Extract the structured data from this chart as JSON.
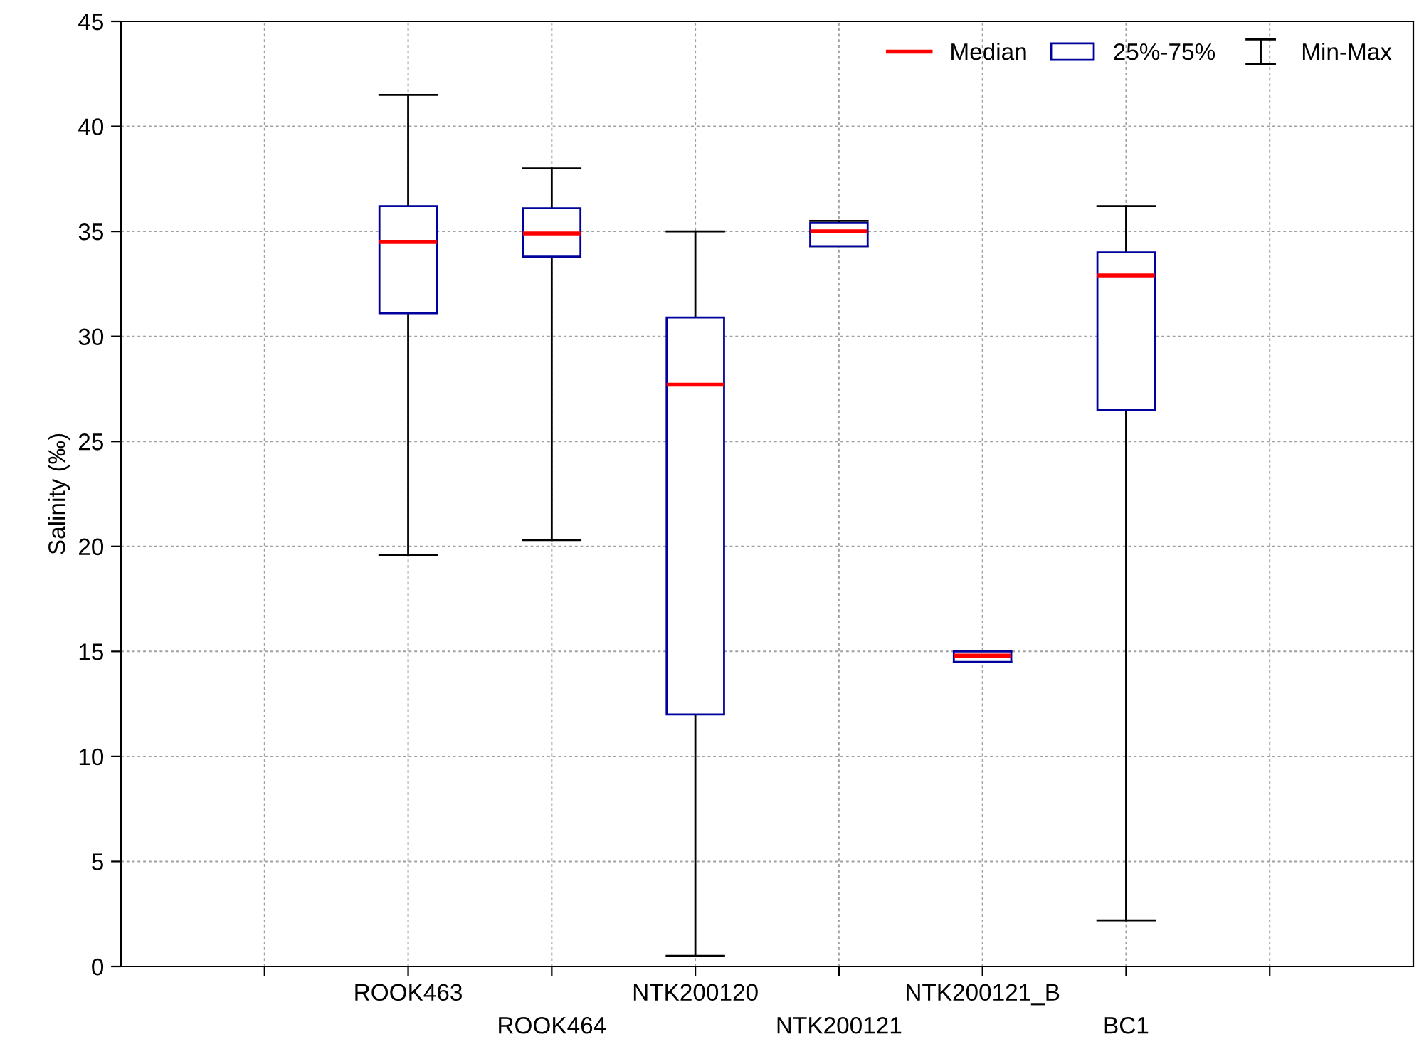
{
  "chart_data": {
    "type": "box",
    "ylabel": "Salinity (‰)",
    "categories": [
      null,
      "ROOK463",
      "ROOK464",
      "NTK200120",
      "NTK200121",
      "NTK200121_B",
      "BC1",
      null
    ],
    "series": [
      {
        "name": "25%-75%",
        "color": "#00009c",
        "boxes": [
          null,
          {
            "low": 19.6,
            "q1": 31.1,
            "median": 34.5,
            "q3": 36.2,
            "high": 41.5
          },
          {
            "low": 20.3,
            "q1": 33.8,
            "median": 34.9,
            "q3": 36.1,
            "high": 38.0
          },
          {
            "low": 0.5,
            "q1": 12.0,
            "median": 27.7,
            "q3": 30.9,
            "high": 35.0
          },
          {
            "low": 34.3,
            "q1": 34.3,
            "median": 35.0,
            "q3": 35.4,
            "high": 35.5
          },
          {
            "low": 14.5,
            "q1": 14.5,
            "median": 14.8,
            "q3": 15.0,
            "high": 15.0
          },
          {
            "low": 2.2,
            "q1": 26.5,
            "median": 32.9,
            "q3": 34.0,
            "high": 36.2
          },
          null
        ]
      }
    ],
    "annotations": [
      "Median",
      "Min-Max"
    ],
    "ylim": [
      0,
      45
    ],
    "yticks": [
      0,
      5,
      10,
      15,
      20,
      25,
      30,
      35,
      40,
      45
    ],
    "grid": true,
    "legend": "top right"
  }
}
